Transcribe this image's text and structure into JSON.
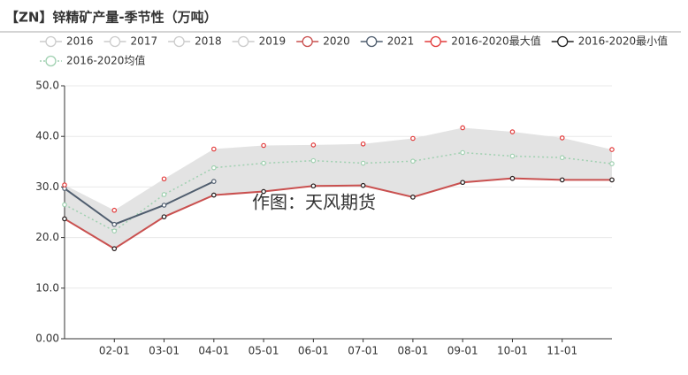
{
  "chart_data": {
    "type": "line",
    "title": "【ZN】锌精矿产量-季节性（万吨）",
    "watermark": "作图：天风期货",
    "categories": [
      null,
      "02-01",
      "03-01",
      "04-01",
      "05-01",
      "06-01",
      "07-01",
      "08-01",
      "09-01",
      "10-01",
      "11-01",
      null
    ],
    "series": [
      {
        "name": "2016",
        "color": "#cccccc",
        "hidden": true
      },
      {
        "name": "2017",
        "color": "#cccccc",
        "hidden": true
      },
      {
        "name": "2018",
        "color": "#cccccc",
        "hidden": true
      },
      {
        "name": "2019",
        "color": "#cccccc",
        "hidden": true
      },
      {
        "name": "2020",
        "color": "#c9504f",
        "style": "line",
        "values": [
          23.7,
          17.8,
          24.1,
          28.4,
          29.1,
          30.2,
          30.3,
          28.0,
          30.9,
          31.7,
          31.4,
          31.4
        ]
      },
      {
        "name": "2021",
        "color": "#4f5d6e",
        "style": "line",
        "values": [
          29.7,
          22.6,
          26.4,
          31.1,
          null,
          null,
          null,
          null,
          null,
          null,
          null,
          null
        ]
      },
      {
        "name": "2016-2020最大值",
        "color": "#e23b3b",
        "style": "points",
        "band": "upper",
        "values": [
          30.4,
          25.4,
          31.6,
          37.5,
          38.2,
          38.3,
          38.5,
          39.6,
          41.7,
          40.9,
          39.7,
          37.4
        ]
      },
      {
        "name": "2016-2020最小值",
        "color": "#222222",
        "style": "points",
        "band": "lower",
        "values": [
          23.7,
          17.8,
          24.1,
          28.4,
          29.1,
          30.2,
          30.3,
          28.0,
          30.9,
          31.7,
          31.4,
          31.4
        ]
      },
      {
        "name": "2016-2020均值",
        "color": "#9fd0b0",
        "style": "dotted",
        "values": [
          26.5,
          21.3,
          28.5,
          33.8,
          34.7,
          35.2,
          34.7,
          35.1,
          36.8,
          36.1,
          35.8,
          34.6
        ]
      }
    ],
    "band_color": "#e3e3e3",
    "ylim": [
      0,
      50
    ],
    "yticks": [
      {
        "value": 0,
        "label": "0.00"
      },
      {
        "value": 10,
        "label": "10.0"
      },
      {
        "value": 20,
        "label": "20.0"
      },
      {
        "value": 30,
        "label": "30.0"
      },
      {
        "value": 40,
        "label": "40.0"
      },
      {
        "value": 50,
        "label": "50.0"
      }
    ],
    "grid": true
  }
}
